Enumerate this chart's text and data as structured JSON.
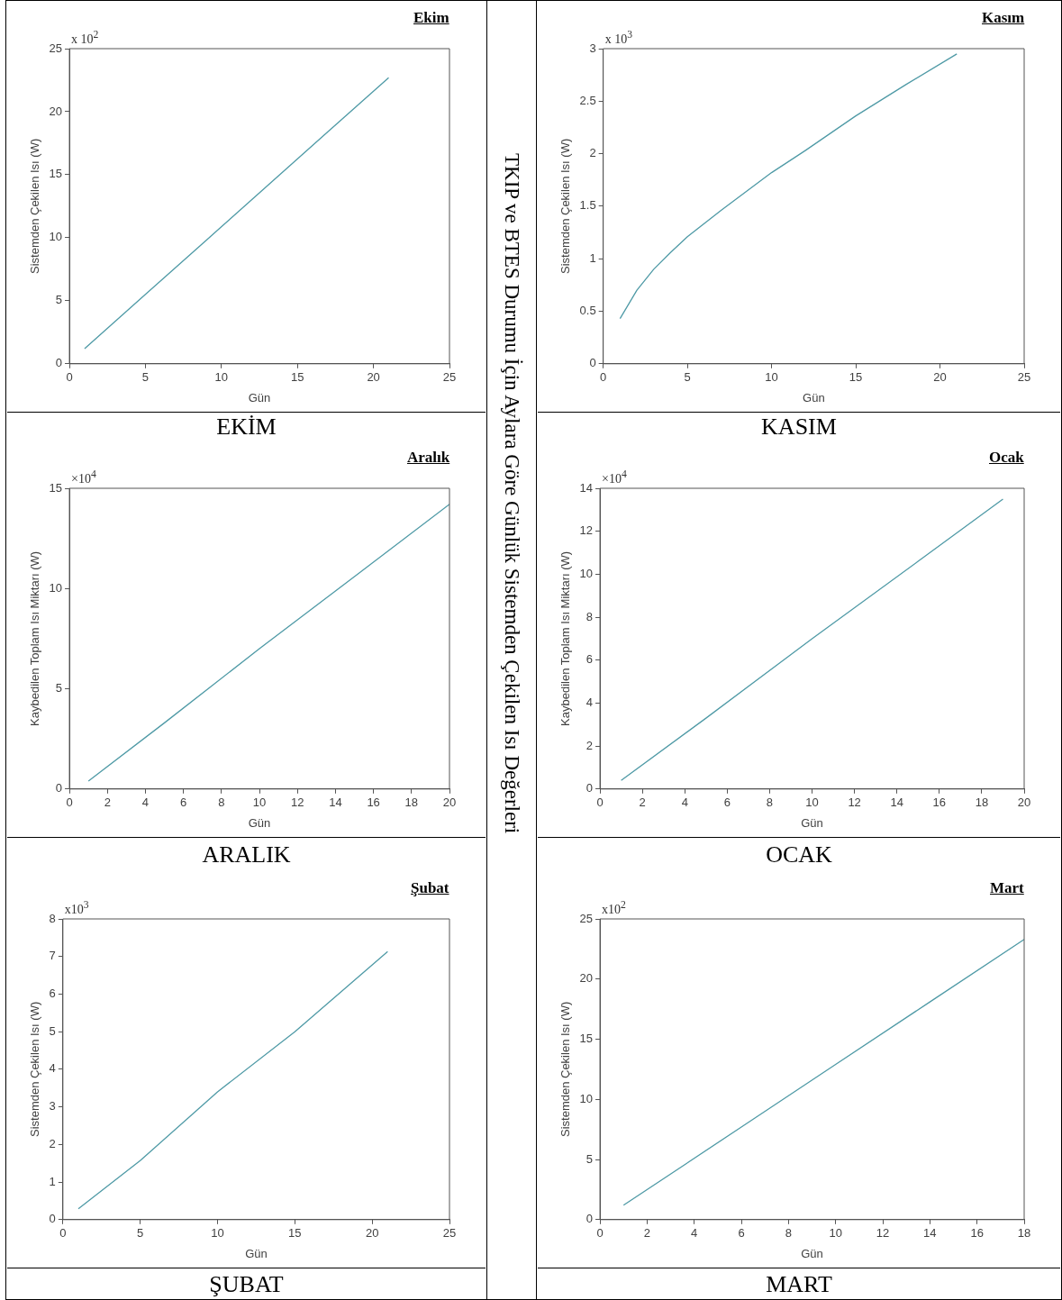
{
  "chart_data": [
    {
      "type": "line",
      "title": "Ekim",
      "xlabel": "Gün",
      "ylabel": "Sistemden Çekilen Isı (W)",
      "annotations": [
        "x 10$^{2}$",
        "EKİM"
      ],
      "x": [
        1,
        5,
        9,
        13,
        17,
        21
      ],
      "values": [
        1.2,
        5.5,
        9.8,
        14.1,
        18.4,
        22.7
      ],
      "color": "#4f9aa6",
      "xlim": [
        0,
        25
      ],
      "xticks": [
        0,
        5,
        10,
        15,
        20,
        25
      ],
      "ylim": [
        0,
        25
      ],
      "yticks": [
        0,
        5,
        10,
        15,
        20,
        25
      ]
    },
    {
      "type": "line",
      "title": "Kasım",
      "xlabel": "Gün",
      "ylabel": "Sistemden Çekilen Isı (W)",
      "annotations": [
        "x 10$^{3}$",
        "KASIM"
      ],
      "x": [
        1,
        2,
        3,
        4,
        5,
        7,
        10,
        12,
        15,
        18,
        21
      ],
      "values": [
        0.43,
        0.7,
        0.9,
        1.06,
        1.21,
        1.46,
        1.82,
        2.03,
        2.36,
        2.66,
        2.95
      ],
      "color": "#4f9aa6",
      "xlim": [
        0,
        25
      ],
      "xticks": [
        0,
        5,
        10,
        15,
        20,
        25
      ],
      "ylim": [
        0,
        3
      ],
      "yticks": [
        0,
        0.5,
        1,
        1.5,
        2,
        2.5,
        3
      ]
    },
    {
      "type": "line",
      "title": "Aralık",
      "xlabel": "Gün",
      "ylabel": "Kaybedilen Toplam Isı Miktarı (W)",
      "annotations": [
        "×10$^{4}$",
        "ARALIK"
      ],
      "x": [
        1,
        5,
        10,
        15,
        20
      ],
      "values": [
        0.4,
        3.3,
        7.0,
        10.6,
        14.2
      ],
      "color": "#4f9aa6",
      "xlim": [
        0,
        20
      ],
      "xticks": [
        0,
        2,
        4,
        6,
        8,
        10,
        12,
        14,
        16,
        18,
        20
      ],
      "ylim": [
        0,
        15
      ],
      "yticks": [
        0,
        5,
        10,
        15
      ]
    },
    {
      "type": "line",
      "title": "Ocak",
      "xlabel": "Gün",
      "ylabel": "Kaybedilen Toplam Isı Miktarı (W)",
      "annotations": [
        "×10$^{4}$",
        "OCAK"
      ],
      "x": [
        1,
        5,
        10,
        15,
        19
      ],
      "values": [
        0.4,
        3.3,
        7.0,
        10.6,
        13.5
      ],
      "color": "#4f9aa6",
      "xlim": [
        0,
        20
      ],
      "xticks": [
        0,
        2,
        4,
        6,
        8,
        10,
        12,
        14,
        16,
        18,
        20
      ],
      "ylim": [
        0,
        14
      ],
      "yticks": [
        0,
        2,
        4,
        6,
        8,
        10,
        12,
        14
      ]
    },
    {
      "type": "line",
      "title": "Şubat",
      "xlabel": "Gün",
      "ylabel": "Sistemden Çekilen Isı (W)",
      "annotations": [
        "x10$^{3}$",
        "ŞUBAT"
      ],
      "x": [
        1,
        5,
        10,
        15,
        21
      ],
      "values": [
        0.29,
        1.57,
        3.4,
        5.0,
        7.13
      ],
      "color": "#4f9aa6",
      "xlim": [
        0,
        25
      ],
      "xticks": [
        0,
        5,
        10,
        15,
        20,
        25
      ],
      "ylim": [
        0,
        8
      ],
      "yticks": [
        0,
        1,
        2,
        3,
        4,
        5,
        6,
        7,
        8
      ]
    },
    {
      "type": "line",
      "title": "Mart",
      "xlabel": "Gün",
      "ylabel": "Sistemden Çekilen Isı (W)",
      "annotations": [
        "x10$^{2}$",
        "MART"
      ],
      "x": [
        1,
        6,
        10,
        14,
        18
      ],
      "values": [
        1.2,
        7.7,
        12.9,
        18.1,
        23.3
      ],
      "color": "#4f9aa6",
      "xlim": [
        0,
        18
      ],
      "xticks": [
        0,
        2,
        4,
        6,
        8,
        10,
        12,
        14,
        16,
        18
      ],
      "ylim": [
        0,
        25
      ],
      "yticks": [
        0,
        5,
        10,
        15,
        20,
        25
      ]
    },
    {
      "type": "other",
      "title": "TKIP ve BTES Durumu İçin Aylara Göre Günlük Sistemden Çekilen Isı Değerleri"
    }
  ]
}
